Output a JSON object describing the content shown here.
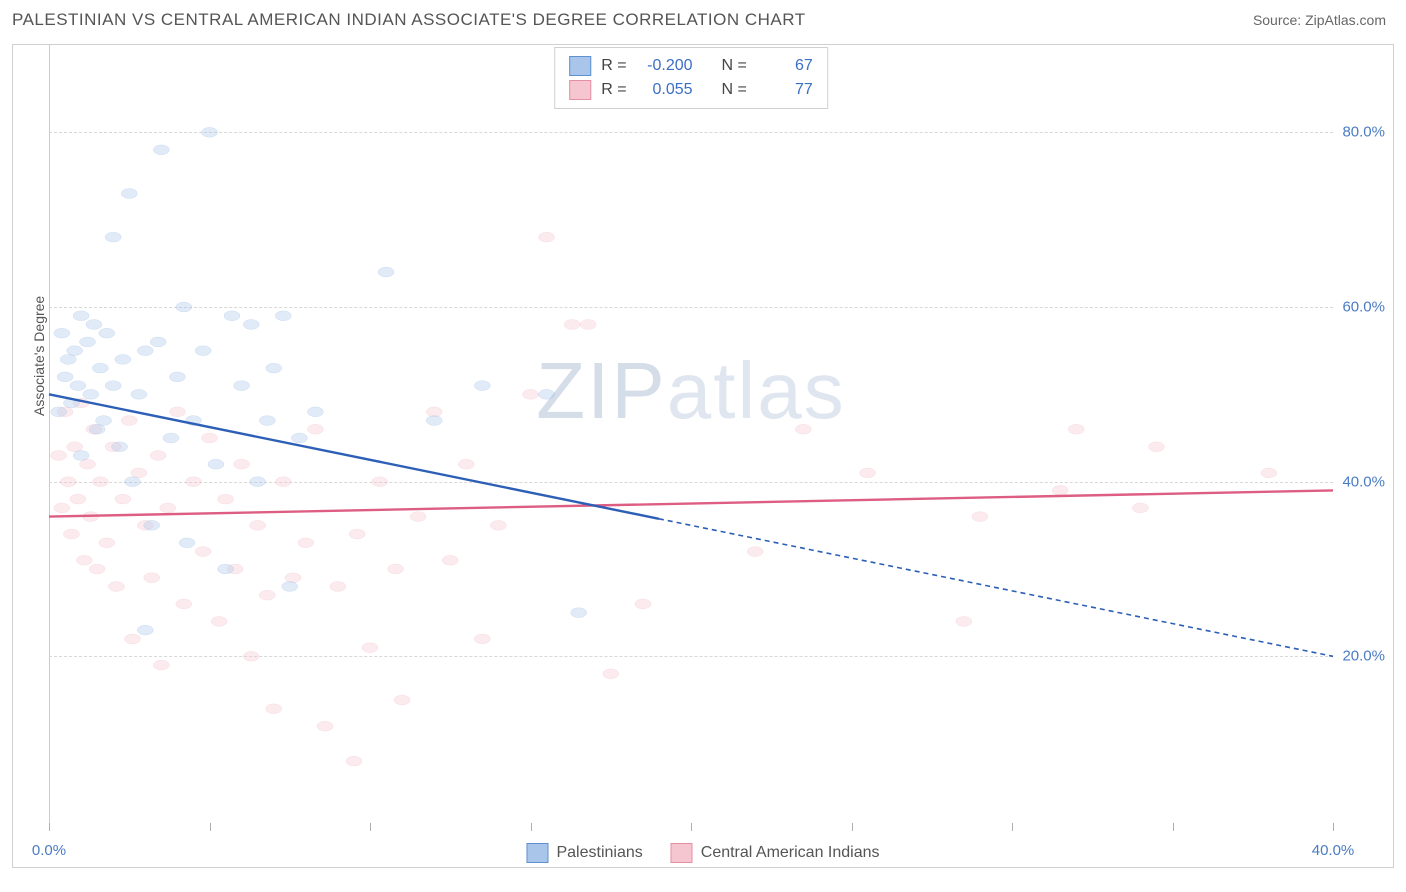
{
  "header": {
    "title": "PALESTINIAN VS CENTRAL AMERICAN INDIAN ASSOCIATE'S DEGREE CORRELATION CHART",
    "source": "Source: ZipAtlas.com"
  },
  "watermark": {
    "bold": "ZIP",
    "thin": "atlas"
  },
  "chart": {
    "type": "scatter",
    "background_color": "#ffffff",
    "grid_color": "#d8d8d8",
    "border_color": "#d0d0d0",
    "xlim": [
      0,
      40
    ],
    "ylim": [
      0,
      90
    ],
    "x_ticks": [
      0,
      5,
      10,
      15,
      20,
      25,
      30,
      35,
      40
    ],
    "x_tick_labels": {
      "0": "0.0%",
      "40": "40.0%"
    },
    "y_ticks": [
      20,
      40,
      60,
      80
    ],
    "y_tick_labels": {
      "20": "20.0%",
      "40": "40.0%",
      "60": "60.0%",
      "80": "80.0%"
    },
    "y_axis_label": "Associate's Degree",
    "marker_radius": 8,
    "marker_fill_opacity": 0.35,
    "marker_stroke_width": 1.3,
    "line_width": 2.4,
    "series": [
      {
        "key": "palestinians",
        "label": "Palestinians",
        "color_fill": "#a9c6ea",
        "color_stroke": "#5f91d0",
        "line_color": "#2d5fb6",
        "R": "-0.200",
        "N": "67",
        "trend": {
          "x1": 0,
          "y1": 50,
          "x2": 40,
          "y2": 20
        },
        "trend_solid_until_x": 19,
        "points": [
          [
            0.3,
            48
          ],
          [
            0.4,
            57
          ],
          [
            0.5,
            52
          ],
          [
            0.6,
            54
          ],
          [
            0.7,
            49
          ],
          [
            0.8,
            55
          ],
          [
            0.9,
            51
          ],
          [
            1.0,
            59
          ],
          [
            1.0,
            43
          ],
          [
            1.2,
            56
          ],
          [
            1.3,
            50
          ],
          [
            1.4,
            58
          ],
          [
            1.5,
            46
          ],
          [
            1.6,
            53
          ],
          [
            1.7,
            47
          ],
          [
            1.8,
            57
          ],
          [
            2.0,
            51
          ],
          [
            2.0,
            68
          ],
          [
            2.2,
            44
          ],
          [
            2.3,
            54
          ],
          [
            2.5,
            73
          ],
          [
            2.6,
            40
          ],
          [
            2.8,
            50
          ],
          [
            3.0,
            55
          ],
          [
            3.0,
            23
          ],
          [
            3.2,
            35
          ],
          [
            3.4,
            56
          ],
          [
            3.5,
            78
          ],
          [
            3.8,
            45
          ],
          [
            4.0,
            52
          ],
          [
            4.2,
            60
          ],
          [
            4.3,
            33
          ],
          [
            4.5,
            47
          ],
          [
            4.8,
            55
          ],
          [
            5.0,
            80
          ],
          [
            5.2,
            42
          ],
          [
            5.5,
            30
          ],
          [
            5.7,
            59
          ],
          [
            6.0,
            51
          ],
          [
            6.3,
            58
          ],
          [
            6.5,
            40
          ],
          [
            6.8,
            47
          ],
          [
            7.0,
            53
          ],
          [
            7.3,
            59
          ],
          [
            7.5,
            28
          ],
          [
            7.8,
            45
          ],
          [
            8.3,
            48
          ],
          [
            10.5,
            64
          ],
          [
            12.0,
            47
          ],
          [
            13.5,
            51
          ],
          [
            15.5,
            50
          ],
          [
            16.5,
            25
          ]
        ]
      },
      {
        "key": "cai",
        "label": "Central American Indians",
        "color_fill": "#f5c6cf",
        "color_stroke": "#e68fa3",
        "line_color": "#dd5e82",
        "R": "0.055",
        "N": "77",
        "trend": {
          "x1": 0,
          "y1": 36,
          "x2": 40,
          "y2": 39
        },
        "points": [
          [
            0.3,
            43
          ],
          [
            0.4,
            37
          ],
          [
            0.5,
            48
          ],
          [
            0.6,
            40
          ],
          [
            0.7,
            34
          ],
          [
            0.8,
            44
          ],
          [
            0.9,
            38
          ],
          [
            1.0,
            49
          ],
          [
            1.1,
            31
          ],
          [
            1.2,
            42
          ],
          [
            1.3,
            36
          ],
          [
            1.4,
            46
          ],
          [
            1.5,
            30
          ],
          [
            1.6,
            40
          ],
          [
            1.8,
            33
          ],
          [
            2.0,
            44
          ],
          [
            2.1,
            28
          ],
          [
            2.3,
            38
          ],
          [
            2.5,
            47
          ],
          [
            2.6,
            22
          ],
          [
            2.8,
            41
          ],
          [
            3.0,
            35
          ],
          [
            3.2,
            29
          ],
          [
            3.4,
            43
          ],
          [
            3.5,
            19
          ],
          [
            3.7,
            37
          ],
          [
            4.0,
            48
          ],
          [
            4.2,
            26
          ],
          [
            4.5,
            40
          ],
          [
            4.8,
            32
          ],
          [
            5.0,
            45
          ],
          [
            5.3,
            24
          ],
          [
            5.5,
            38
          ],
          [
            5.8,
            30
          ],
          [
            6.0,
            42
          ],
          [
            6.3,
            20
          ],
          [
            6.5,
            35
          ],
          [
            6.8,
            27
          ],
          [
            7.0,
            14
          ],
          [
            7.3,
            40
          ],
          [
            7.6,
            29
          ],
          [
            8.0,
            33
          ],
          [
            8.3,
            46
          ],
          [
            8.6,
            12
          ],
          [
            9.0,
            28
          ],
          [
            9.5,
            8
          ],
          [
            9.6,
            34
          ],
          [
            10.0,
            21
          ],
          [
            10.3,
            40
          ],
          [
            10.8,
            30
          ],
          [
            11.0,
            15
          ],
          [
            11.5,
            36
          ],
          [
            12.0,
            48
          ],
          [
            12.5,
            31
          ],
          [
            13.0,
            42
          ],
          [
            13.5,
            22
          ],
          [
            14.0,
            35
          ],
          [
            15.0,
            50
          ],
          [
            15.5,
            68
          ],
          [
            16.3,
            58
          ],
          [
            16.8,
            58
          ],
          [
            17.5,
            18
          ],
          [
            18.5,
            26
          ],
          [
            22.0,
            32
          ],
          [
            23.5,
            46
          ],
          [
            25.5,
            41
          ],
          [
            28.5,
            24
          ],
          [
            29.0,
            36
          ],
          [
            31.5,
            39
          ],
          [
            32.0,
            46
          ],
          [
            34.0,
            37
          ],
          [
            34.5,
            44
          ],
          [
            38.0,
            41
          ]
        ]
      }
    ],
    "legend_stats": {
      "R_label": "R =",
      "N_label": "N ="
    }
  }
}
